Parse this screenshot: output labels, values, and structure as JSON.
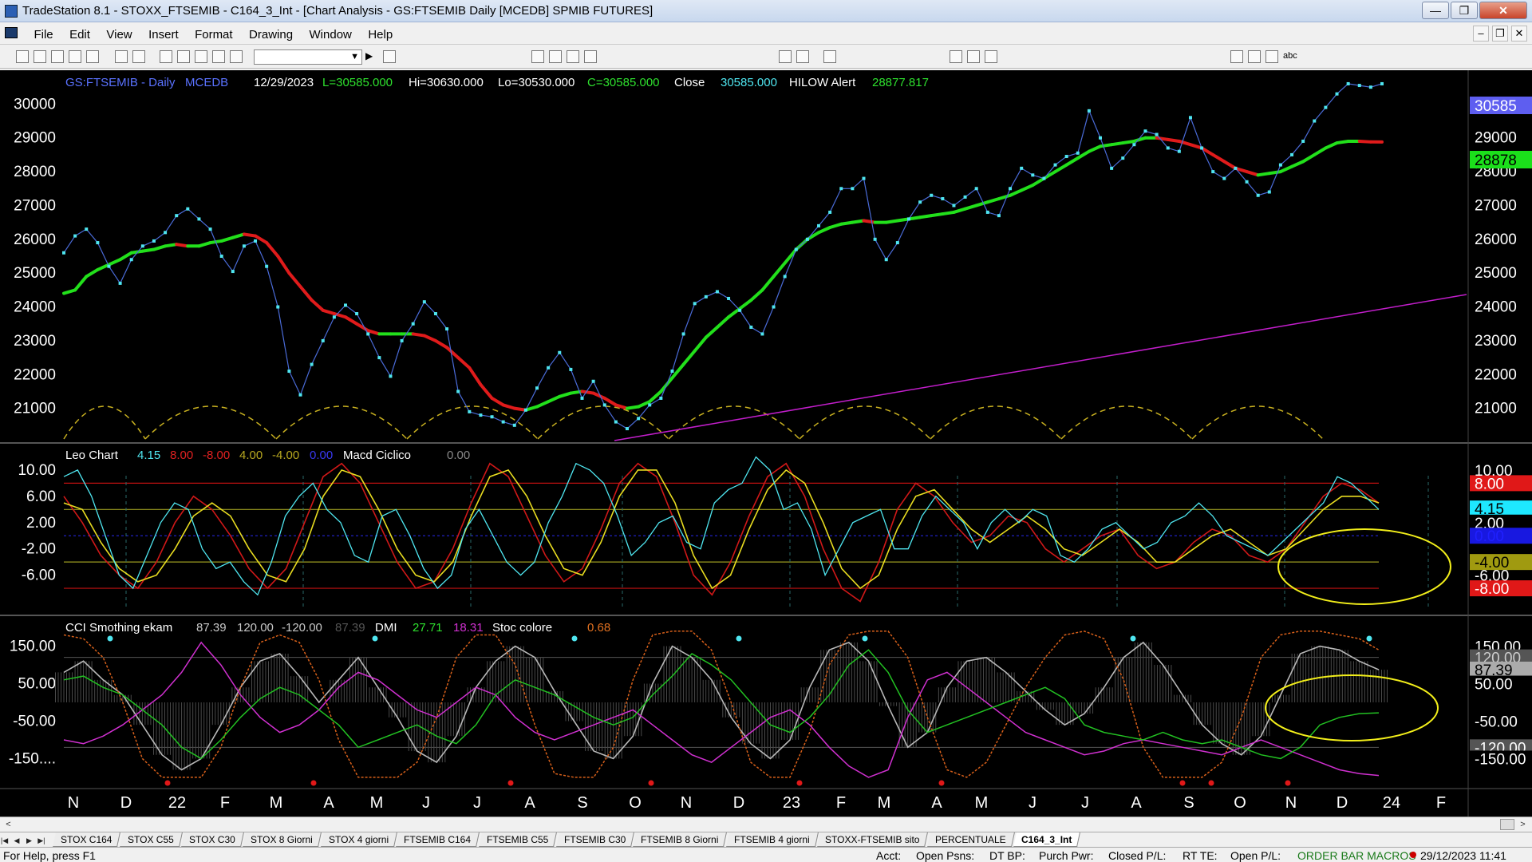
{
  "window": {
    "title": "TradeStation 8.1 - STOXX_FTSEMIB - C164_3_Int - [Chart Analysis - GS:FTSEMIB  Daily  [MCEDB] SPMIB FUTURES]"
  },
  "menu": [
    "File",
    "Edit",
    "View",
    "Insert",
    "Format",
    "Drawing",
    "Window",
    "Help"
  ],
  "colors": {
    "background": "#000000",
    "price": "#4fe6f0",
    "ma_up": "#22e01b",
    "ma_down": "#e01b1b",
    "trendline": "#c21ecb",
    "cycle": "#c8b020",
    "ellipse": "#f2ee1a",
    "cci": "#9a9a9a"
  },
  "chart_data": [
    {
      "type": "line",
      "title": "GS:FTSEMIB - Daily",
      "header": {
        "symbol": "GS:FTSEMIB - Daily",
        "source": "MCEDB",
        "date": "12/29/2023",
        "last": "L=30585.000",
        "high": "Hi=30630.000",
        "low": "Lo=30530.000",
        "close_eq": "C=30585.000",
        "close_label": "Close",
        "close_value": "30585.000",
        "study_label": "HILOW Alert",
        "study_value": "28877.817"
      },
      "ylim": [
        20000,
        31000
      ],
      "yticks": [
        "30000",
        "29000",
        "28000",
        "27000",
        "26000",
        "25000",
        "24000",
        "23000",
        "22000",
        "21000"
      ],
      "right_labels": {
        "price": "30585",
        "average": "28878"
      },
      "series": [
        {
          "values": [
            25600,
            26100,
            26300,
            25900,
            25200,
            24700,
            25400,
            25800,
            25950,
            26200,
            26700,
            26900,
            26600,
            26300,
            25500,
            25050,
            25800,
            25950,
            25200,
            24000,
            22100,
            21400,
            22300,
            23000,
            23700,
            24050,
            23800,
            23200,
            22500,
            21950,
            23000,
            23500,
            24150,
            23800,
            23350,
            21500,
            20900,
            20800,
            20750,
            20600,
            20500,
            20950,
            21600,
            22200,
            22650,
            22150,
            21300,
            21800,
            21100,
            20600,
            20400,
            20700,
            21100,
            21300,
            22100,
            23200,
            24100,
            24300,
            24450,
            24250,
            23900,
            23400,
            23200,
            24000,
            24900,
            25700,
            26000,
            26400,
            26800,
            27500,
            27500,
            27800,
            26000,
            25400,
            25900,
            26600,
            27100,
            27300,
            27200,
            27000,
            27250,
            27500,
            26800,
            26700,
            27500,
            28100,
            27900,
            27800,
            28200,
            28450,
            28550,
            29800,
            29000,
            28100,
            28400,
            28800,
            29200,
            29100,
            28700,
            28600,
            29600,
            28700,
            28000,
            27800,
            28100,
            27700,
            27300,
            27400,
            28200,
            28500,
            28900,
            29500,
            29900,
            30300,
            30600,
            30550,
            30500,
            30600
          ]
        }
      ],
      "average": [
        24400,
        24500,
        24900,
        25100,
        25250,
        25400,
        25600,
        25650,
        25700,
        25800,
        25850,
        25800,
        25800,
        25900,
        25950,
        26050,
        26150,
        26100,
        25900,
        25500,
        25000,
        24600,
        24200,
        23900,
        23800,
        23700,
        23500,
        23300,
        23200,
        23200,
        23200,
        23200,
        23150,
        23000,
        22800,
        22500,
        22200,
        21700,
        21300,
        21100,
        21000,
        20950,
        21050,
        21200,
        21350,
        21450,
        21500,
        21450,
        21300,
        21100,
        21000,
        21050,
        21200,
        21500,
        21900,
        22300,
        22700,
        23100,
        23400,
        23700,
        23950,
        24200,
        24500,
        24900,
        25300,
        25700,
        26000,
        26200,
        26350,
        26450,
        26500,
        26550,
        26500,
        26500,
        26550,
        26600,
        26650,
        26700,
        26750,
        26800,
        26900,
        27000,
        27100,
        27200,
        27300,
        27450,
        27600,
        27800,
        28000,
        28200,
        28400,
        28600,
        28750,
        28800,
        28850,
        28900,
        29000,
        29000,
        28950,
        28900,
        28800,
        28700,
        28500,
        28300,
        28100,
        28000,
        27900,
        27950,
        28000,
        28150,
        28300,
        28500,
        28700,
        28850,
        28900,
        28900,
        28880,
        28878
      ],
      "xticks": [
        "N",
        "D",
        "22",
        "F",
        "M",
        "A",
        "M",
        "J",
        "J",
        "A",
        "S",
        "O",
        "N",
        "D",
        "23",
        "F",
        "M",
        "A",
        "M",
        "J",
        "J",
        "A",
        "S",
        "O",
        "N",
        "D",
        "24",
        "F"
      ]
    },
    {
      "type": "line",
      "title": "Leo Chart",
      "header": {
        "name": "Leo Chart",
        "v1": "4.15",
        "v2": "8.00",
        "v3": "-8.00",
        "v4": "4.00",
        "v5": "-4.00",
        "v6": "0.00",
        "name2": "Macd Ciclico",
        "v7": "0.00"
      },
      "ylim": [
        -12,
        14
      ],
      "yticks": [
        "10.00",
        "6.00",
        "2.00",
        "-2.00",
        "-6.00"
      ],
      "levels": [
        8,
        4,
        0,
        -4,
        -8
      ],
      "right_labels": [
        "8.00",
        "4.15",
        "2.00",
        "0.00",
        "-4.00",
        "-8.00"
      ],
      "series": [
        {
          "name": "osc",
          "values": [
            9,
            10,
            6,
            0,
            -6,
            -8,
            -3,
            2,
            5,
            4,
            -2,
            -5,
            -4,
            -7,
            -9,
            -4,
            3,
            6,
            8,
            4,
            2,
            -3,
            -4,
            3,
            4,
            0,
            -5,
            -8,
            -6,
            1,
            4,
            0,
            -4,
            -6,
            -4,
            2,
            6,
            11,
            10,
            8,
            3,
            -3,
            -1,
            2,
            3,
            -1,
            -2,
            5,
            7,
            8,
            12,
            10,
            4,
            5,
            1,
            -6,
            -2,
            2,
            3,
            4,
            -2,
            -2,
            3,
            6,
            4,
            2,
            -2,
            2,
            4,
            2,
            4,
            3,
            -3,
            -4,
            -2,
            1,
            2,
            0,
            -2,
            -1,
            2,
            3,
            5,
            3,
            0,
            -1,
            -2,
            -3,
            -1,
            1,
            3,
            5,
            9,
            8,
            6,
            4
          ]
        },
        {
          "name": "red",
          "values": [
            6,
            2,
            -3,
            -6,
            -8,
            -4,
            2,
            6,
            4,
            0,
            -5,
            -8,
            -5,
            2,
            9,
            11,
            8,
            2,
            -4,
            -8,
            -7,
            -2,
            5,
            11,
            9,
            3,
            -3,
            -7,
            -5,
            1,
            8,
            11,
            9,
            2,
            -6,
            -9,
            -4,
            3,
            9,
            11,
            6,
            -2,
            -8,
            -10,
            -4,
            4,
            8,
            6,
            2,
            -1,
            0,
            3,
            2,
            -2,
            -4,
            -2,
            0,
            1,
            -3,
            -5,
            -4,
            -1,
            1,
            0,
            -3,
            -4,
            -2,
            2,
            6,
            8,
            7,
            5
          ]
        },
        {
          "name": "yellow",
          "values": [
            5,
            4,
            -1,
            -5,
            -7,
            -6,
            -2,
            3,
            5,
            3,
            -2,
            -6,
            -7,
            -2,
            6,
            10,
            9,
            4,
            -2,
            -6,
            -7,
            -4,
            3,
            9,
            10,
            6,
            0,
            -5,
            -6,
            -1,
            6,
            10,
            10,
            5,
            -3,
            -8,
            -6,
            1,
            7,
            10,
            8,
            2,
            -5,
            -8,
            -6,
            1,
            6,
            7,
            4,
            1,
            -1,
            1,
            3,
            1,
            -2,
            -3,
            -1,
            1,
            -1,
            -4,
            -4,
            -2,
            0,
            1,
            -1,
            -3,
            -2,
            1,
            4,
            6,
            6,
            5
          ]
        }
      ]
    },
    {
      "type": "line",
      "title": "CCI Smothing ekam",
      "header": {
        "name": "CCI Smothing ekam",
        "v1": "87.39",
        "v2": "120.00",
        "v3": "-120.00",
        "v4": "87.39",
        "name2": "DMI",
        "d1": "27.71",
        "d2": "18.31",
        "name3": "Stoc colore",
        "s1": "0.68"
      },
      "ylim": [
        -230,
        230
      ],
      "yticks": [
        "150.00",
        "50.00",
        "-50.00",
        "-150...."
      ],
      "right_labels": [
        "150.00",
        "120.00",
        "87.39",
        "50.00",
        "-50.00",
        "-120.00",
        "-150.00"
      ],
      "series": [
        {
          "name": "cci",
          "values": [
            80,
            110,
            60,
            20,
            -60,
            -140,
            -180,
            -150,
            -60,
            40,
            110,
            130,
            70,
            0,
            60,
            120,
            40,
            -40,
            -130,
            -160,
            -90,
            40,
            110,
            150,
            120,
            30,
            -50,
            -130,
            -150,
            -90,
            50,
            150,
            120,
            60,
            -40,
            -110,
            -150,
            -100,
            40,
            140,
            160,
            110,
            -10,
            -120,
            -80,
            40,
            110,
            120,
            80,
            30,
            -20,
            -60,
            -30,
            40,
            120,
            160,
            100,
            20,
            -60,
            -110,
            -140,
            -90,
            20,
            130,
            150,
            140,
            110,
            87
          ]
        },
        {
          "name": "dmi-plus",
          "values": [
            60,
            70,
            40,
            20,
            -20,
            -60,
            -120,
            -150,
            -100,
            -40,
            10,
            40,
            20,
            -20,
            -60,
            -120,
            -100,
            -80,
            -60,
            -90,
            -110,
            -60,
            20,
            60,
            40,
            20,
            -10,
            -40,
            -60,
            -40,
            20,
            70,
            130,
            100,
            60,
            0,
            -60,
            -80,
            -40,
            20,
            100,
            140,
            80,
            -20,
            -80,
            -60,
            -40,
            -20,
            0,
            20,
            40,
            10,
            -60,
            -80,
            -90,
            -100,
            -80,
            -100,
            -110,
            -100,
            -120,
            -140,
            -150,
            -120,
            -60,
            -40,
            -30,
            -28
          ]
        },
        {
          "name": "dmi-minus",
          "values": [
            -100,
            -110,
            -90,
            -60,
            -20,
            20,
            80,
            160,
            100,
            20,
            -40,
            -80,
            -60,
            -20,
            40,
            80,
            60,
            20,
            -20,
            -40,
            0,
            40,
            20,
            -40,
            -80,
            -100,
            -80,
            -60,
            -40,
            -20,
            -60,
            -100,
            -140,
            -160,
            -120,
            -80,
            -40,
            -20,
            -60,
            -120,
            -170,
            -200,
            -180,
            -40,
            60,
            80,
            40,
            0,
            -40,
            -80,
            -100,
            -120,
            -140,
            -130,
            -110,
            -100,
            -110,
            -120,
            -130,
            -140,
            -120,
            -100,
            -120,
            -140,
            -160,
            -180,
            -190,
            -195
          ]
        },
        {
          "name": "stoch",
          "values": [
            180,
            170,
            120,
            0,
            -150,
            -200,
            -200,
            -200,
            -120,
            40,
            160,
            180,
            160,
            60,
            -100,
            -200,
            -200,
            -200,
            -160,
            -40,
            120,
            180,
            180,
            100,
            -60,
            -190,
            -200,
            -200,
            -120,
            60,
            180,
            190,
            190,
            140,
            0,
            -160,
            -200,
            -200,
            -80,
            100,
            180,
            190,
            190,
            120,
            -40,
            -180,
            -200,
            -160,
            -60,
            40,
            120,
            180,
            190,
            170,
            60,
            -120,
            -200,
            -200,
            -200,
            -160,
            -40,
            120,
            180,
            190,
            190,
            180,
            170,
            140
          ]
        }
      ]
    }
  ],
  "hscroll": {
    "left": "<",
    "right": ">"
  },
  "tabs": [
    "STOX C164",
    "STOX C55",
    "STOX  C30",
    "STOX  8 Giorni",
    "STOX 4 giorni",
    "FTSEMIB C164",
    "FTSEMIB C55",
    "FTSEMIB C30",
    "FTSEMIB  8 Giorni",
    "FTSEMIB  4 giorni",
    "STOXX-FTSEMIB sito",
    "PERCENTUALE",
    "C164_3_Int"
  ],
  "status": {
    "help": "For Help, press F1",
    "acct": "Acct:",
    "open_psns": "Open Psns:",
    "dt_bp": "DT BP:",
    "purch_pwr": "Purch Pwr:",
    "closed_pl": "Closed P/L:",
    "rt_te": "RT TE:",
    "open_pl": "Open P/L:",
    "macros": "ORDER BAR  MACROS",
    "datetime": "29/12/2023 11:41"
  }
}
